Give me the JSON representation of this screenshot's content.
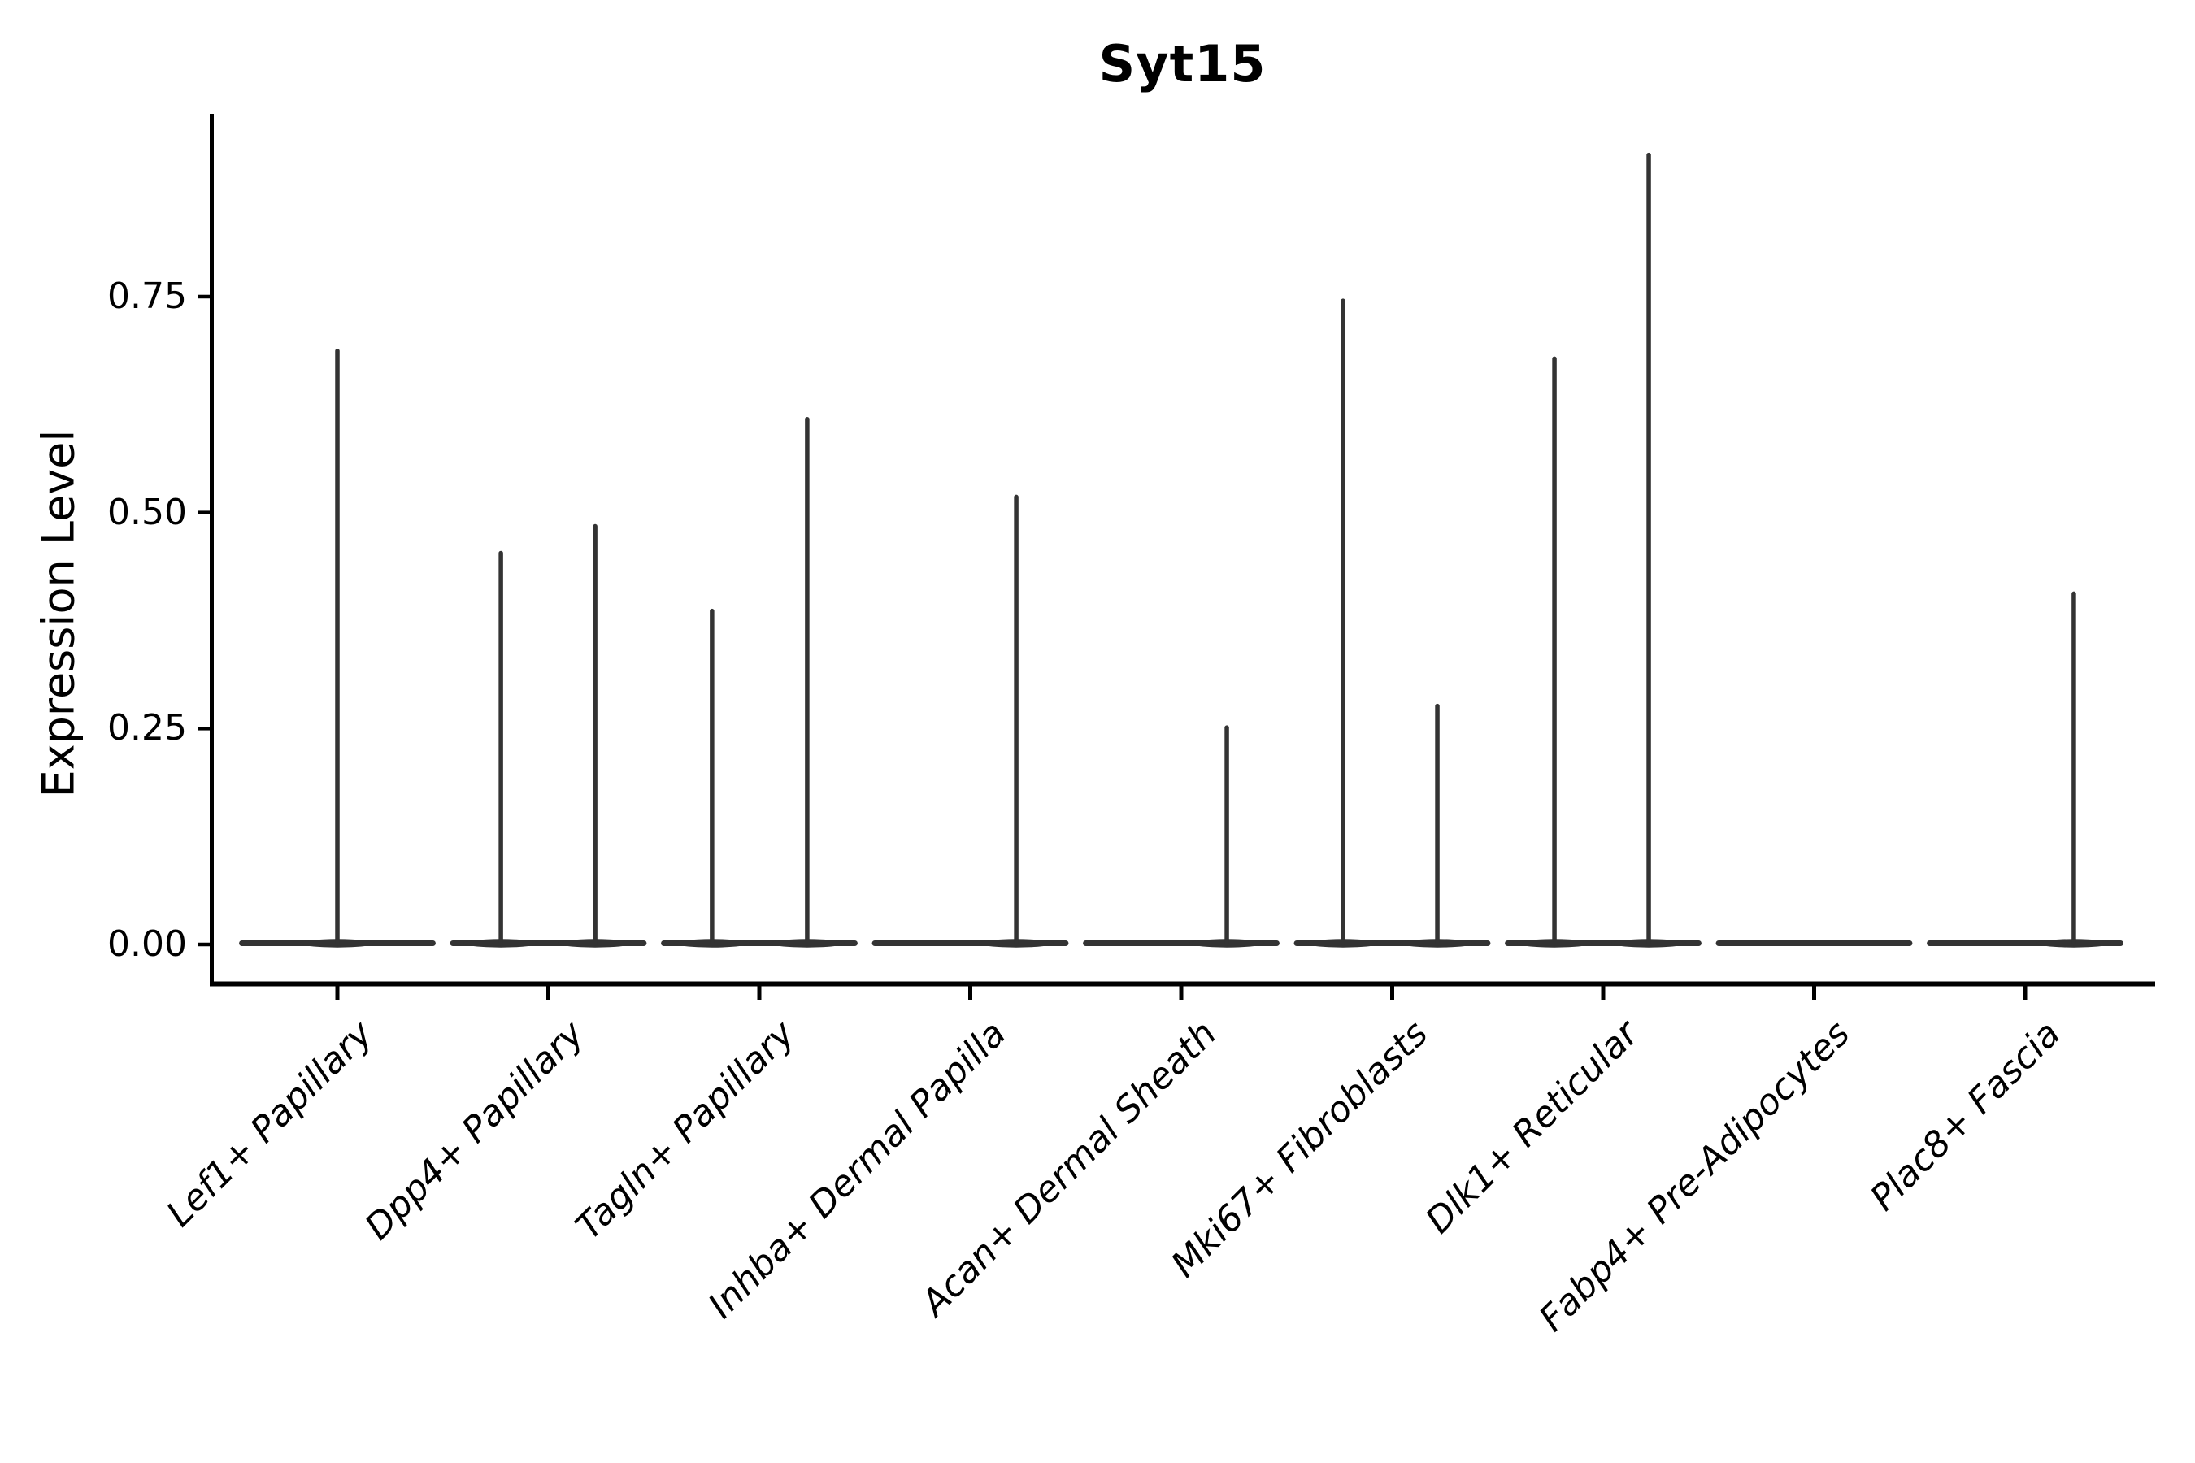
{
  "chart_data": {
    "type": "violin",
    "title": "Syt15",
    "ylabel": "Expression Level",
    "xlabel": "",
    "grid": false,
    "legend": null,
    "ylim": [
      -0.048,
      0.962
    ],
    "ytick_values": [
      0,
      0.25,
      0.5,
      0.75
    ],
    "ytick_labels": [
      "0.00",
      "0.25",
      "0.50",
      "0.75"
    ],
    "categories": [
      "Lef1+ Papillary",
      "Dpp4+ Papillary",
      "Tagln+ Papillary",
      "Inhba+ Dermal Papilla",
      "Acan+ Dermal Sheath",
      "Mki67+ Fibroblasts",
      "Dlk1+ Reticular",
      "Fabp4+ Pre-Adipocytes",
      "Plac8+ Fascia"
    ],
    "violins": [
      {
        "category": "Lef1+ Papillary",
        "base_at_zero": true,
        "spikes": [
          {
            "pos": 0.0,
            "max": 0.689
          }
        ]
      },
      {
        "category": "Dpp4+ Papillary",
        "base_at_zero": true,
        "spikes": [
          {
            "pos": -0.225,
            "max": 0.455
          },
          {
            "pos": 0.222,
            "max": 0.486
          }
        ]
      },
      {
        "category": "Tagln+ Papillary",
        "base_at_zero": true,
        "spikes": [
          {
            "pos": -0.224,
            "max": 0.388
          },
          {
            "pos": 0.227,
            "max": 0.61
          }
        ]
      },
      {
        "category": "Inhba+ Dermal Papilla",
        "base_at_zero": true,
        "spikes": [
          {
            "pos": 0.218,
            "max": 0.52
          }
        ]
      },
      {
        "category": "Acan+ Dermal Sheath",
        "base_at_zero": true,
        "spikes": [
          {
            "pos": 0.216,
            "max": 0.253
          }
        ]
      },
      {
        "category": "Mki67+ Fibroblasts",
        "base_at_zero": true,
        "spikes": [
          {
            "pos": -0.233,
            "max": 0.747
          },
          {
            "pos": 0.214,
            "max": 0.278
          }
        ]
      },
      {
        "category": "Dlk1+ Reticular",
        "base_at_zero": true,
        "spikes": [
          {
            "pos": -0.231,
            "max": 0.68
          },
          {
            "pos": 0.216,
            "max": 0.916
          }
        ]
      },
      {
        "category": "Fabp4+ Pre-Adipocytes",
        "base_at_zero": true,
        "spikes": []
      },
      {
        "category": "Plac8+ Fascia",
        "base_at_zero": true,
        "spikes": [
          {
            "pos": 0.231,
            "max": 0.408
          }
        ]
      }
    ],
    "violin_halfwidth": 0.466,
    "colors": {
      "violin": "#333333",
      "axis": "#000000",
      "text": "#000000",
      "background": "#ffffff"
    }
  }
}
